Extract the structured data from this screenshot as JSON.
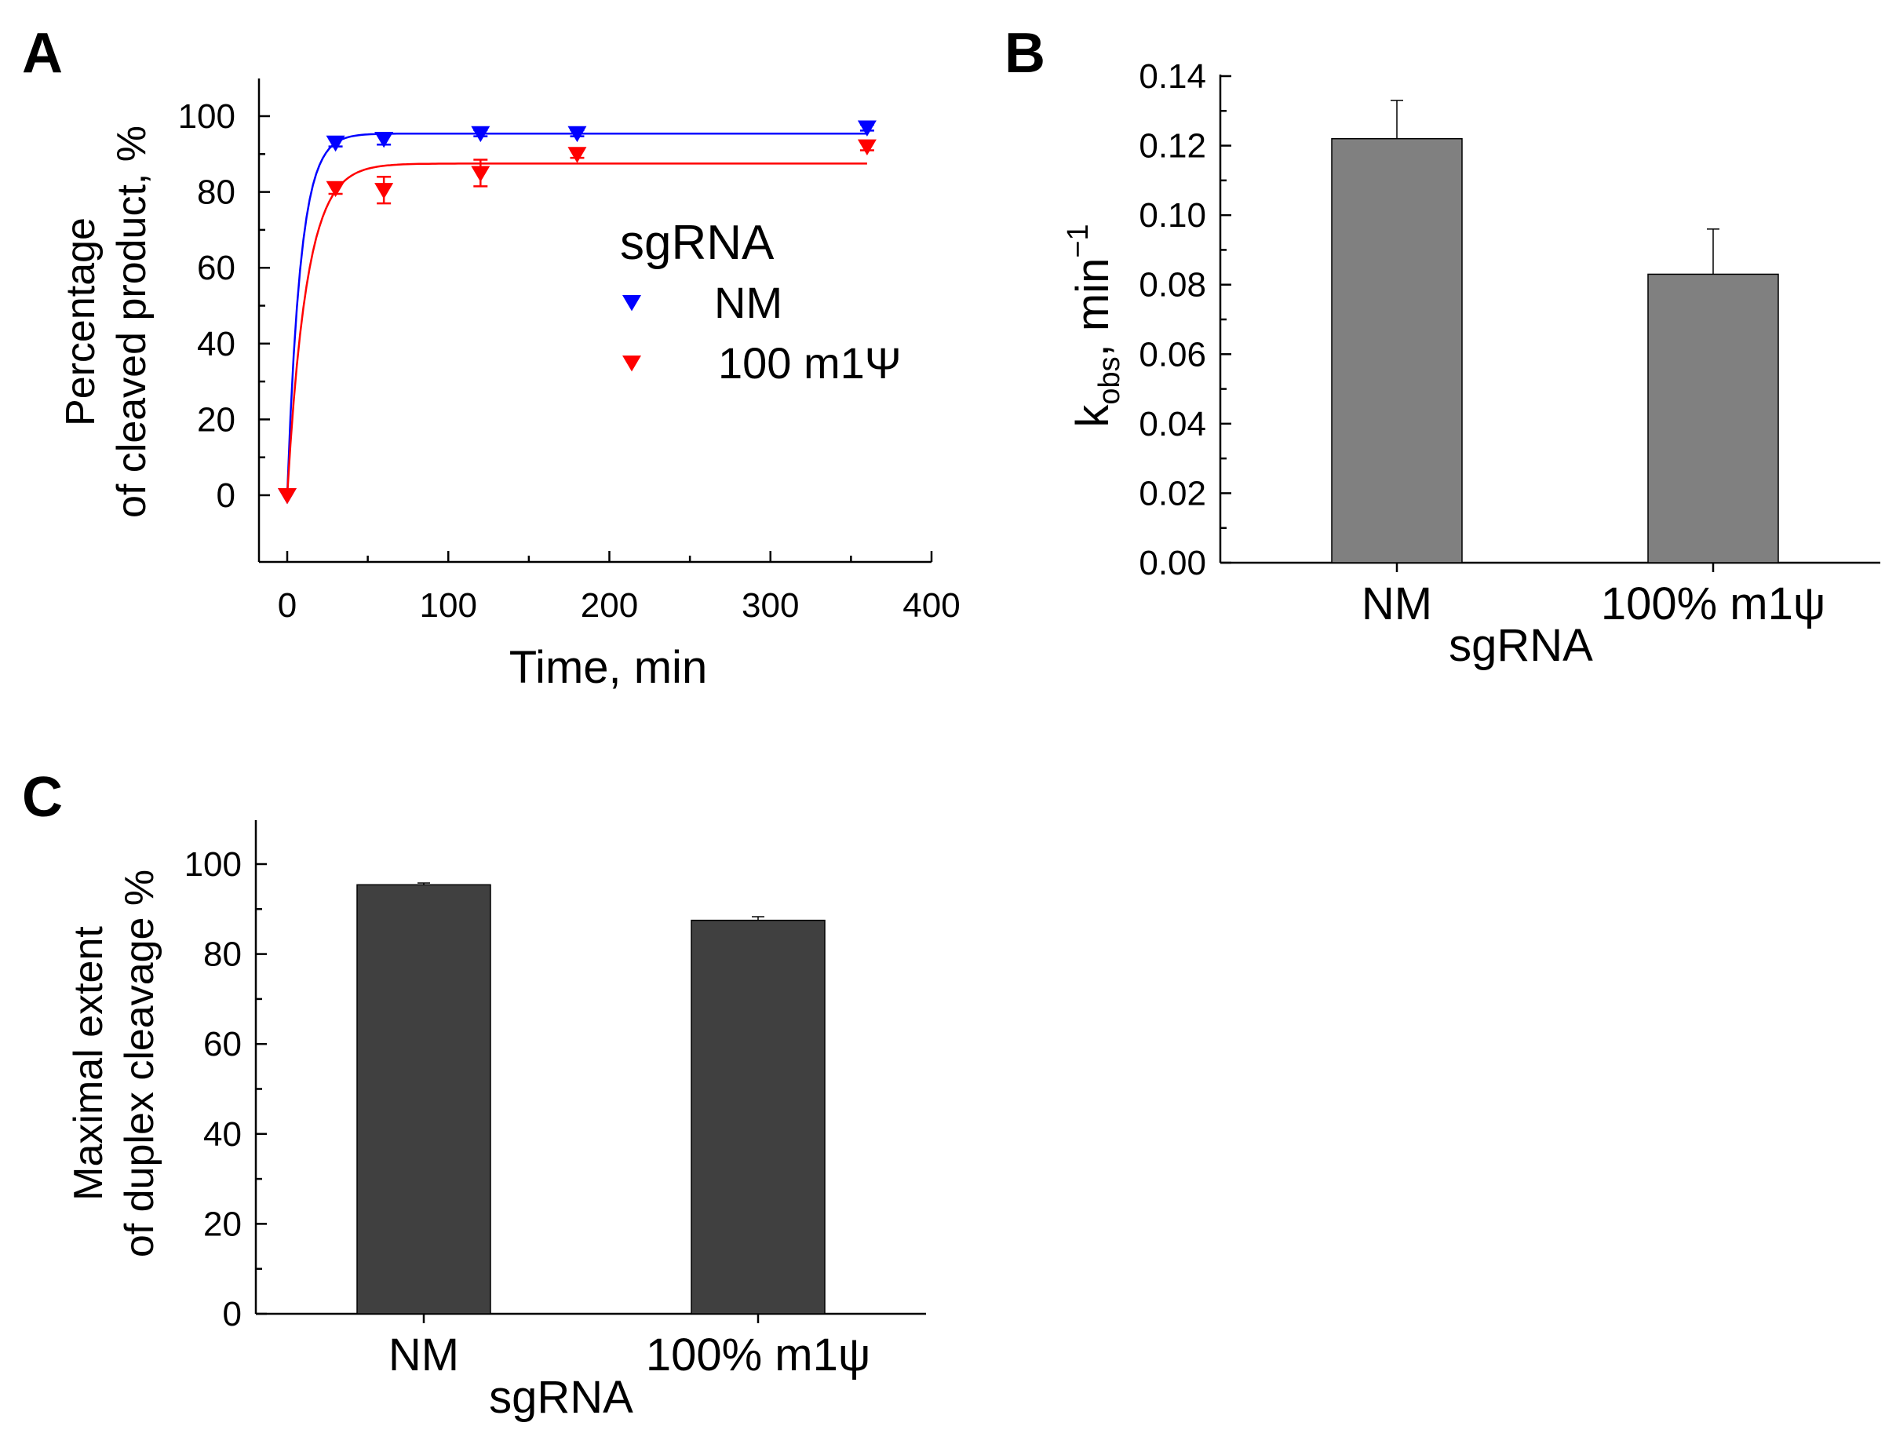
{
  "colors": {
    "nm": "#0000ff",
    "m1psi": "#ff0000",
    "bar_b": "#808080",
    "bar_c": "#404040",
    "error": "#000000"
  },
  "chart_data": [
    {
      "panel": "A",
      "type": "scatter",
      "xlabel": "Time, min",
      "ylabel_line1": "Percentage",
      "ylabel_line2": "of cleaved product, %",
      "xlim": [
        -18,
        400
      ],
      "ylim": [
        -18,
        110
      ],
      "xticks": [
        0,
        100,
        200,
        300,
        400
      ],
      "yticks": [
        0,
        20,
        40,
        60,
        80,
        100
      ],
      "legend": {
        "title": "sgRNA",
        "position": "right"
      },
      "series": [
        {
          "name": "NM",
          "color": "#0000ff",
          "x": [
            0,
            30,
            60,
            120,
            180,
            360
          ],
          "y": [
            0,
            93,
            94,
            95.5,
            95.5,
            97
          ],
          "err": [
            0,
            1,
            1.5,
            0.8,
            0.8,
            0.8
          ],
          "fit": {
            "plateau": 95.4,
            "k": 0.122,
            "x_end": 360
          }
        },
        {
          "name": "100 m1Ψ",
          "color": "#ff0000",
          "x": [
            0,
            30,
            60,
            120,
            180,
            360
          ],
          "y": [
            0,
            81,
            80.5,
            85,
            90,
            92
          ],
          "err": [
            0,
            1.5,
            3.5,
            3.5,
            1,
            1
          ],
          "fit": {
            "plateau": 87.5,
            "k": 0.083,
            "x_end": 360
          }
        }
      ]
    },
    {
      "panel": "B",
      "type": "bar",
      "categories": [
        "NM",
        "100% m1ψ"
      ],
      "values": [
        0.122,
        0.083
      ],
      "errors": [
        0.011,
        0.013
      ],
      "xlabel": "sgRNA",
      "ylabel": "kobs, min−1",
      "ylabel_main": "k",
      "ylabel_sub": "obs",
      "ylabel_rest": ", min",
      "ylabel_sup": "−1",
      "ylim": [
        0,
        0.14
      ],
      "yticks": [
        "0.00",
        "0.02",
        "0.04",
        "0.06",
        "0.08",
        "0.10",
        "0.12",
        "0.14"
      ]
    },
    {
      "panel": "C",
      "type": "bar",
      "categories": [
        "NM",
        "100% m1ψ"
      ],
      "values": [
        95.4,
        87.5
      ],
      "errors": [
        0.4,
        0.8
      ],
      "xlabel": "sgRNA",
      "ylabel_line1": "Maximal extent",
      "ylabel_line2": "of duplex cleavage %",
      "ylim": [
        0,
        110
      ],
      "yticks": [
        0,
        20,
        40,
        60,
        80,
        100
      ]
    }
  ]
}
